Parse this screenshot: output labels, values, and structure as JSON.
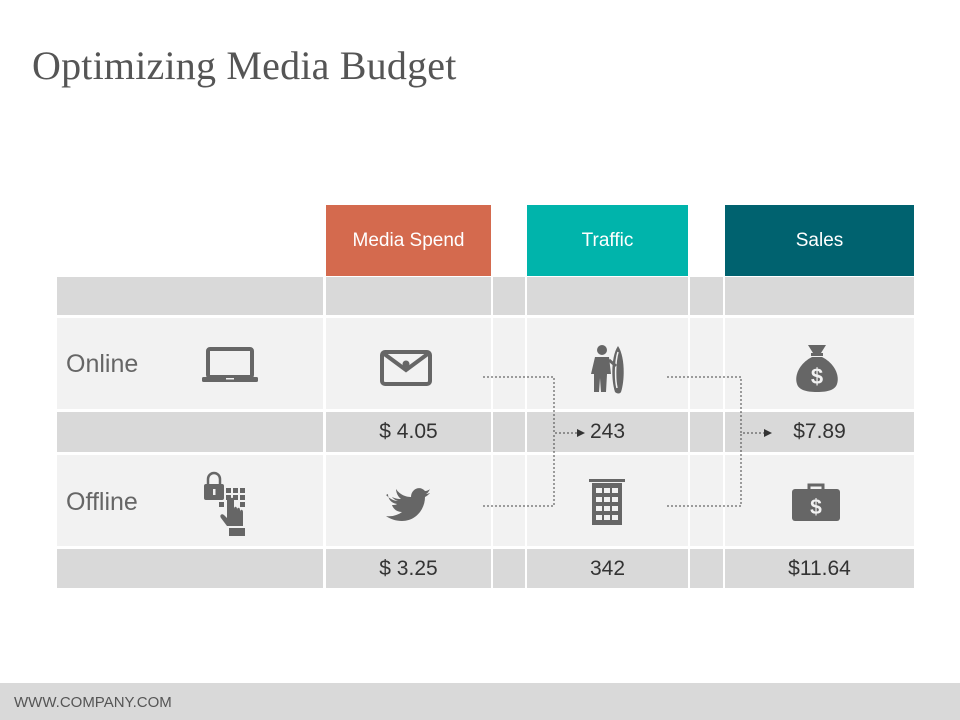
{
  "title": "Optimizing Media Budget",
  "headers": {
    "media_spend": "Media Spend",
    "traffic": "Traffic",
    "sales": "Sales"
  },
  "header_colors": {
    "media_spend": "#d46a4e",
    "traffic": "#00b4ab",
    "sales": "#00626f"
  },
  "rows": [
    {
      "label": "Online",
      "channel_icon": "laptop-icon",
      "media_spend": "$ 4.05",
      "media_spend_icon": "envelope-icon",
      "traffic": "243",
      "traffic_icon": "surfer-icon",
      "sales": "$7.89",
      "sales_icon": "money-bag-icon"
    },
    {
      "label": "Offline",
      "channel_icon": "lock-keypad-icon",
      "media_spend": "$ 3.25",
      "media_spend_icon": "bird-icon",
      "traffic": "342",
      "traffic_icon": "building-icon",
      "sales": "$11.64",
      "sales_icon": "briefcase-dollar-icon"
    }
  ],
  "footer": "WWW.COMPANY.COM"
}
